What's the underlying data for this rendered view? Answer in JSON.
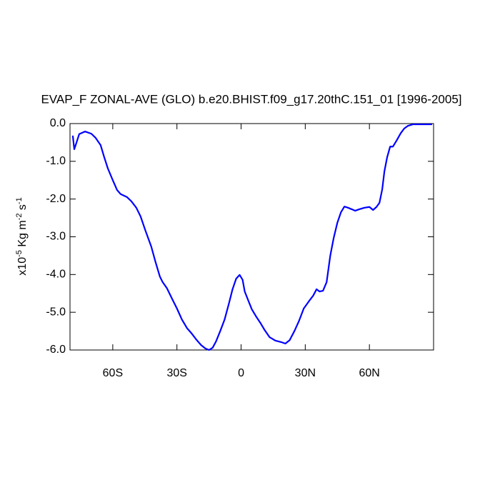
{
  "chart_data": {
    "type": "line",
    "title": "EVAP_F ZONAL-AVE (GLO) b.e20.BHIST.f09_g17.20thC.151_01 [1996-2005]",
    "ylabel": [
      {
        "text": "x10"
      },
      {
        "text": "-5",
        "sup": true
      },
      {
        "text": " Kg m"
      },
      {
        "text": "-2",
        "sup": true
      },
      {
        "text": " s"
      },
      {
        "text": "-1",
        "sup": true
      }
    ],
    "x": [
      -78.7,
      -78,
      -77,
      -75.7,
      -73,
      -70,
      -68,
      -65.7,
      -64,
      -62.3,
      -60,
      -58,
      -56.3,
      -53.3,
      -51.3,
      -49,
      -47,
      -44.7,
      -42,
      -40,
      -38,
      -36.7,
      -34.7,
      -32.3,
      -30,
      -27.7,
      -25.3,
      -23,
      -21,
      -18.7,
      -16.7,
      -15,
      -13.3,
      -11.7,
      -9.7,
      -7.7,
      -5.7,
      -4,
      -2.3,
      -0.7,
      0.7,
      1.7,
      3.3,
      5,
      7,
      9,
      11,
      13.3,
      16,
      18.7,
      20.7,
      22.7,
      25,
      27,
      29.3,
      31.7,
      33.7,
      35.3,
      36.7,
      38.3,
      40,
      41.7,
      43.3,
      45,
      46.7,
      48.3,
      50,
      51.7,
      53.3,
      55.3,
      57.7,
      60,
      61.7,
      63.3,
      64.7,
      66,
      67,
      68.3,
      69.7,
      71,
      72.7,
      74.7,
      76.3,
      78,
      80.3,
      84.3,
      89.3
    ],
    "series": [
      {
        "color": "#0000ff",
        "values": [
          -0.32,
          -0.68,
          -0.51,
          -0.28,
          -0.21,
          -0.27,
          -0.38,
          -0.57,
          -0.89,
          -1.19,
          -1.5,
          -1.76,
          -1.87,
          -1.95,
          -2.06,
          -2.23,
          -2.46,
          -2.84,
          -3.26,
          -3.67,
          -4.05,
          -4.2,
          -4.36,
          -4.64,
          -4.9,
          -5.19,
          -5.42,
          -5.57,
          -5.72,
          -5.87,
          -5.96,
          -6.0,
          -5.94,
          -5.77,
          -5.49,
          -5.19,
          -4.77,
          -4.39,
          -4.11,
          -4.01,
          -4.14,
          -4.45,
          -4.68,
          -4.92,
          -5.11,
          -5.28,
          -5.47,
          -5.66,
          -5.75,
          -5.79,
          -5.83,
          -5.74,
          -5.49,
          -5.24,
          -4.9,
          -4.71,
          -4.56,
          -4.39,
          -4.45,
          -4.43,
          -4.2,
          -3.5,
          -3.03,
          -2.63,
          -2.35,
          -2.2,
          -2.23,
          -2.27,
          -2.31,
          -2.27,
          -2.23,
          -2.21,
          -2.29,
          -2.21,
          -2.1,
          -1.74,
          -1.27,
          -0.89,
          -0.61,
          -0.61,
          -0.45,
          -0.25,
          -0.13,
          -0.06,
          -0.02,
          -0.02,
          -0.02
        ]
      }
    ],
    "xlim": [
      -80,
      90
    ],
    "ylim": [
      -6,
      0
    ],
    "xticks": [
      {
        "value": -60,
        "label": "60S"
      },
      {
        "value": -30,
        "label": "30S"
      },
      0,
      {
        "value": 30,
        "label": "30N"
      },
      {
        "value": 60,
        "label": "60N"
      }
    ],
    "yticks": [
      {
        "value": 0,
        "label": "0.0"
      },
      {
        "value": -1,
        "label": "-1.0"
      },
      {
        "value": -2,
        "label": "-2.0"
      },
      {
        "value": -3,
        "label": "-3.0"
      },
      {
        "value": -4,
        "label": "-4.0"
      },
      {
        "value": -5,
        "label": "-5.0"
      },
      {
        "value": -6,
        "label": "-6.0"
      }
    ],
    "grid": false
  }
}
